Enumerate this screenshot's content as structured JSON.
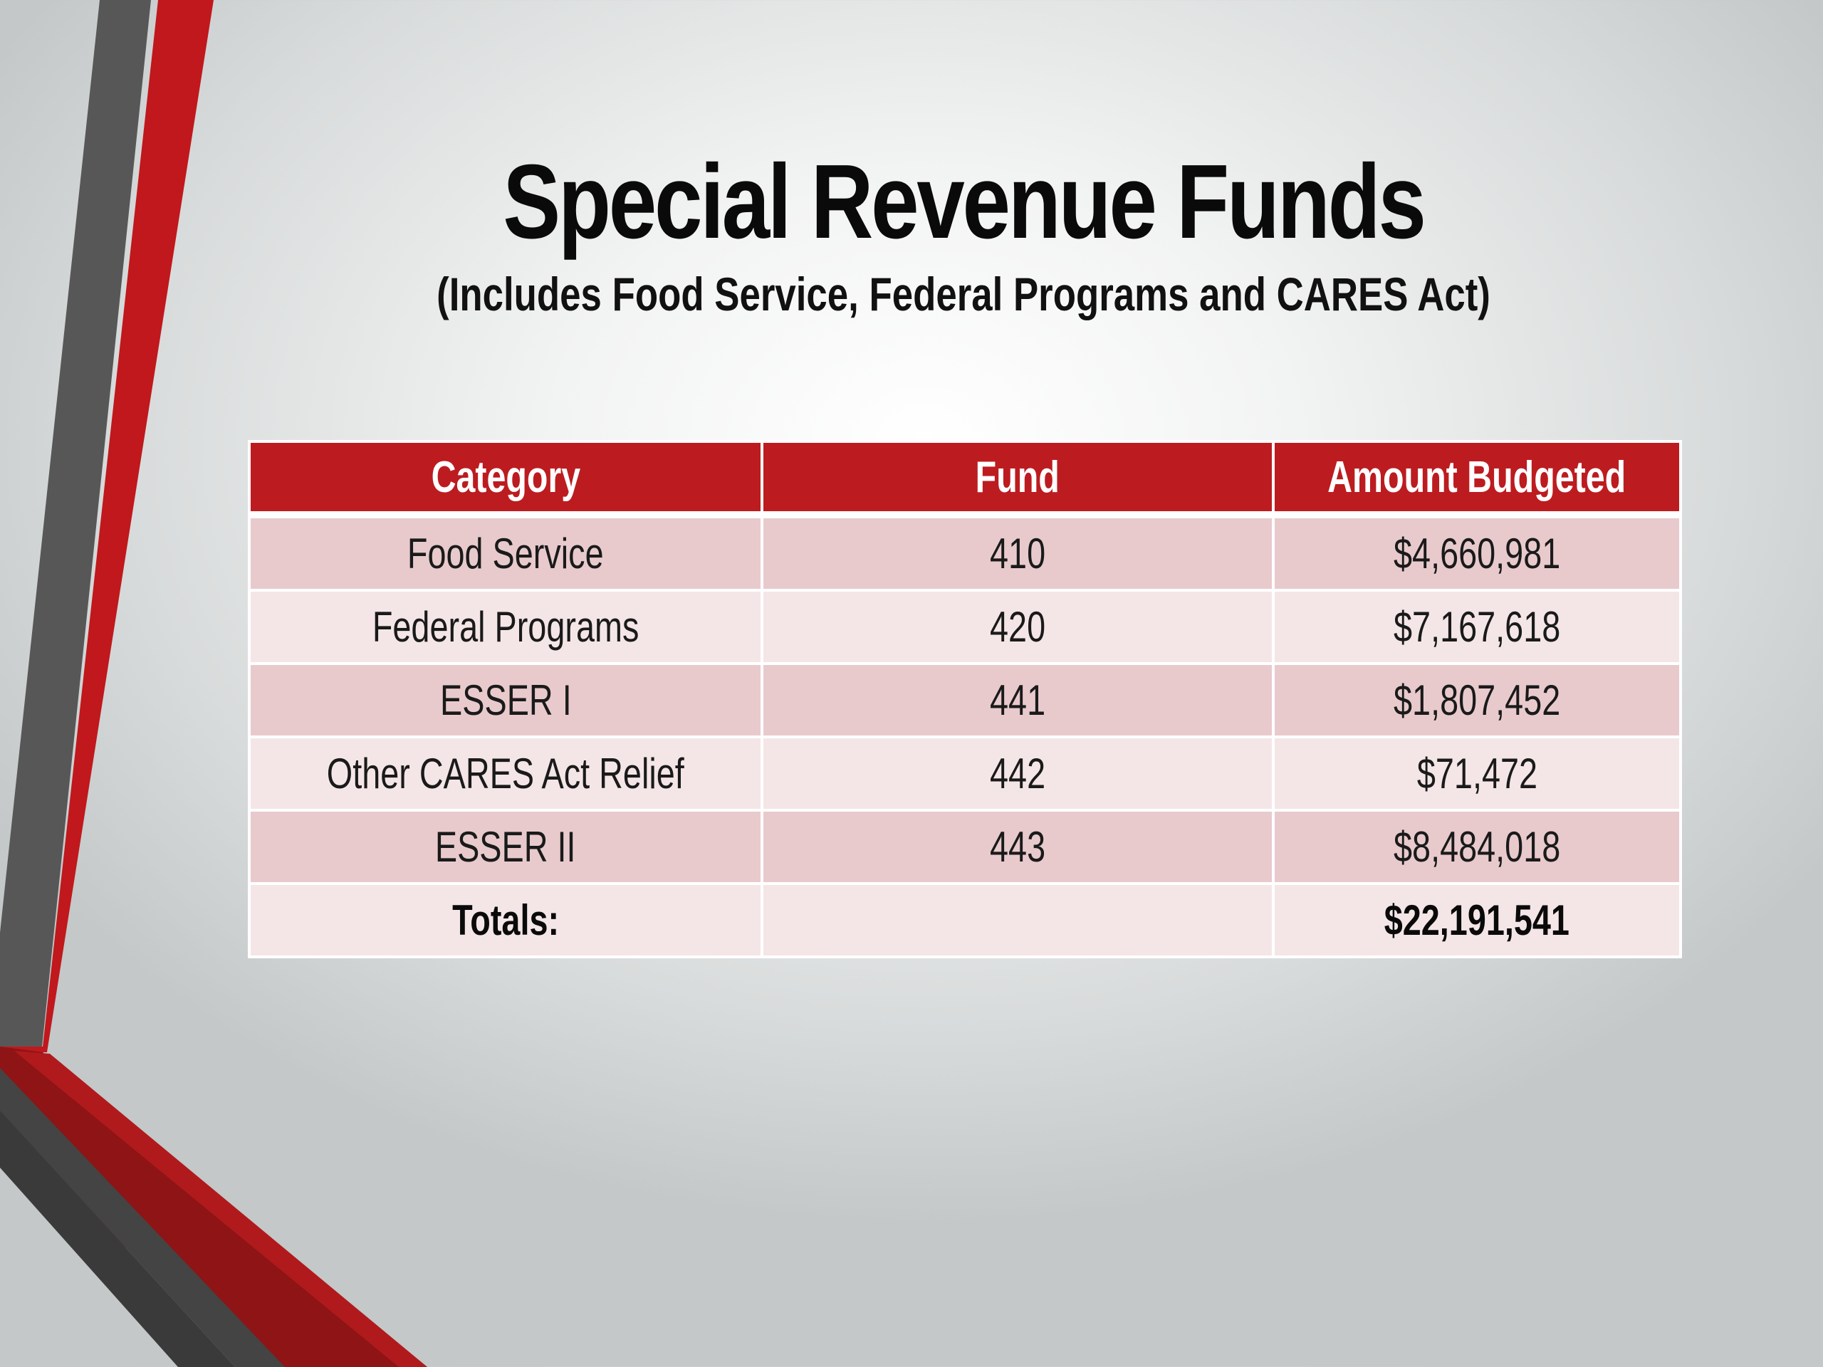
{
  "slide": {
    "title": "Special Revenue Funds",
    "subtitle": "(Includes Food Service, Federal Programs and CARES Act)"
  },
  "table": {
    "headers": [
      "Category",
      "Fund",
      "Amount Budgeted"
    ],
    "rows": [
      {
        "category": "Food Service",
        "fund": "410",
        "amount": "$4,660,981"
      },
      {
        "category": "Federal Programs",
        "fund": "420",
        "amount": "$7,167,618"
      },
      {
        "category": "ESSER I",
        "fund": "441",
        "amount": "$1,807,452"
      },
      {
        "category": "Other CARES Act Relief",
        "fund": "442",
        "amount": "$71,472"
      },
      {
        "category": "ESSER II",
        "fund": "443",
        "amount": "$8,484,018"
      }
    ],
    "total": {
      "label": "Totals:",
      "fund": "",
      "amount": "$22,191,541"
    }
  },
  "colors": {
    "header_red": "#bc1c20",
    "row_dark": "#e8cacd",
    "row_light": "#f4e6e7",
    "accent_gray": "#555555"
  }
}
